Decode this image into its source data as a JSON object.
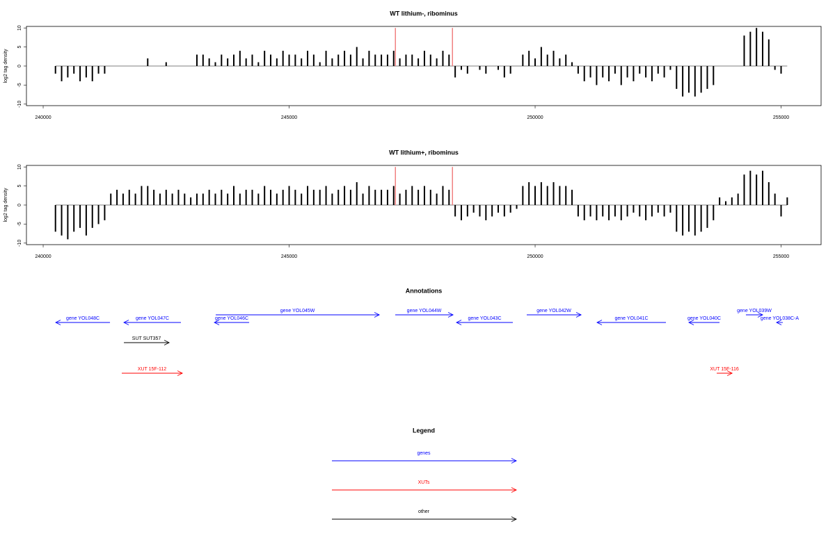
{
  "chart_data": [
    {
      "type": "bar",
      "title": "WT lithium-, ribominus",
      "ylabel": "log2 tag density",
      "color": "#000000",
      "x": [
        240250,
        240375,
        240500,
        240625,
        240750,
        240875,
        241000,
        241125,
        241250,
        241375,
        241500,
        241625,
        241750,
        241875,
        242000,
        242125,
        242250,
        242375,
        242500,
        242625,
        242750,
        242875,
        243000,
        243125,
        243250,
        243375,
        243500,
        243625,
        243750,
        243875,
        244000,
        244125,
        244250,
        244375,
        244500,
        244625,
        244750,
        244875,
        245000,
        245125,
        245250,
        245375,
        245500,
        245625,
        245750,
        245875,
        246000,
        246125,
        246250,
        246375,
        246500,
        246625,
        246750,
        246875,
        247000,
        247125,
        247250,
        247375,
        247500,
        247625,
        247750,
        247875,
        248000,
        248125,
        248250,
        248375,
        248500,
        248625,
        248750,
        248875,
        249000,
        249125,
        249250,
        249375,
        249500,
        249625,
        249750,
        249875,
        250000,
        250125,
        250250,
        250375,
        250500,
        250625,
        250750,
        250875,
        251000,
        251125,
        251250,
        251375,
        251500,
        251625,
        251750,
        251875,
        252000,
        252125,
        252250,
        252375,
        252500,
        252625,
        252750,
        252875,
        253000,
        253125,
        253250,
        253375,
        253500,
        253625,
        253750,
        253875,
        254000,
        254125,
        254250,
        254375,
        254500,
        254625,
        254750,
        254875,
        255000,
        255125
      ],
      "values": [
        -2,
        -4,
        -3,
        -2,
        -4,
        -3,
        -4,
        -2,
        -2,
        0,
        0,
        0,
        0,
        0,
        0,
        2,
        0,
        0,
        1,
        0,
        0,
        0,
        0,
        3,
        3,
        2,
        1,
        3,
        2,
        3,
        4,
        2,
        3,
        1,
        4,
        3,
        2,
        4,
        3,
        3,
        2,
        4,
        3,
        1,
        4,
        2,
        3,
        4,
        3,
        5,
        2,
        4,
        3,
        3,
        3,
        4,
        2,
        3,
        3,
        2,
        4,
        3,
        2,
        4,
        3,
        -3,
        -1,
        -2,
        0,
        -1,
        -2,
        0,
        -1,
        -3,
        -2,
        0,
        3,
        4,
        2,
        5,
        3,
        4,
        2,
        3,
        1,
        -2,
        -4,
        -3,
        -5,
        -3,
        -4,
        -2,
        -5,
        -3,
        -4,
        -2,
        -3,
        -4,
        -2,
        -3,
        -1,
        -6,
        -8,
        -7,
        -8,
        -7,
        -6,
        -5,
        0,
        0,
        0,
        0,
        8,
        9,
        10,
        9,
        7,
        -1,
        -2,
        0
      ],
      "highlights": {
        "color": "#f08080",
        "x": [
          247160,
          248320
        ],
        "values": [
          10,
          10
        ]
      },
      "xlim": [
        239660,
        255813
      ],
      "ylim": [
        -10.4,
        10.4
      ],
      "xticks": [
        240000,
        245000,
        250000,
        255000
      ],
      "yticks": [
        10,
        5,
        0,
        -5,
        -10
      ]
    },
    {
      "type": "bar",
      "title": "WT lithium+, ribominus",
      "ylabel": "log2 tag density",
      "color": "#000000",
      "x": [
        240250,
        240375,
        240500,
        240625,
        240750,
        240875,
        241000,
        241125,
        241250,
        241375,
        241500,
        241625,
        241750,
        241875,
        242000,
        242125,
        242250,
        242375,
        242500,
        242625,
        242750,
        242875,
        243000,
        243125,
        243250,
        243375,
        243500,
        243625,
        243750,
        243875,
        244000,
        244125,
        244250,
        244375,
        244500,
        244625,
        244750,
        244875,
        245000,
        245125,
        245250,
        245375,
        245500,
        245625,
        245750,
        245875,
        246000,
        246125,
        246250,
        246375,
        246500,
        246625,
        246750,
        246875,
        247000,
        247125,
        247250,
        247375,
        247500,
        247625,
        247750,
        247875,
        248000,
        248125,
        248250,
        248375,
        248500,
        248625,
        248750,
        248875,
        249000,
        249125,
        249250,
        249375,
        249500,
        249625,
        249750,
        249875,
        250000,
        250125,
        250250,
        250375,
        250500,
        250625,
        250750,
        250875,
        251000,
        251125,
        251250,
        251375,
        251500,
        251625,
        251750,
        251875,
        252000,
        252125,
        252250,
        252375,
        252500,
        252625,
        252750,
        252875,
        253000,
        253125,
        253250,
        253375,
        253500,
        253625,
        253750,
        253875,
        254000,
        254125,
        254250,
        254375,
        254500,
        254625,
        254750,
        254875,
        255000,
        255125
      ],
      "values": [
        -7,
        -8,
        -9,
        -7,
        -6,
        -8,
        -6,
        -5,
        -4,
        3,
        4,
        3,
        4,
        3,
        5,
        5,
        4,
        3,
        4,
        3,
        4,
        3,
        2,
        3,
        3,
        4,
        3,
        4,
        3,
        5,
        3,
        4,
        4,
        3,
        5,
        4,
        3,
        4,
        5,
        4,
        3,
        5,
        4,
        4,
        5,
        3,
        4,
        5,
        4,
        6,
        3,
        5,
        4,
        4,
        4,
        5,
        3,
        4,
        5,
        4,
        5,
        4,
        3,
        5,
        4,
        -3,
        -4,
        -3,
        -2,
        -3,
        -4,
        -3,
        -2,
        -3,
        -2,
        -1,
        5,
        6,
        5,
        6,
        5,
        6,
        5,
        5,
        4,
        -3,
        -4,
        -3,
        -4,
        -3,
        -4,
        -3,
        -4,
        -3,
        -2,
        -3,
        -4,
        -3,
        -2,
        -3,
        -2,
        -7,
        -8,
        -7,
        -8,
        -7,
        -6,
        -4,
        2,
        1,
        2,
        3,
        8,
        9,
        8,
        9,
        6,
        3,
        -3,
        2
      ],
      "highlights": {
        "color": "#f08080",
        "x": [
          247160,
          248320
        ],
        "values": [
          10,
          10
        ]
      },
      "xlim": [
        239660,
        255813
      ],
      "ylim": [
        -10.4,
        10.4
      ],
      "xticks": [
        240000,
        245000,
        250000,
        255000
      ],
      "yticks": [
        10,
        5,
        0,
        -5,
        -10
      ]
    }
  ],
  "annotations": {
    "title": "Annotations",
    "features": [
      {
        "label": "gene YOL048C",
        "from": 241358,
        "to": 240255,
        "color": "#0000ff"
      },
      {
        "label": "gene YOL047C",
        "from": 242800,
        "to": 241641,
        "color": "#0000ff"
      },
      {
        "label": "gene YOL046C",
        "from": 244187,
        "to": 243480,
        "color": "#0000ff"
      },
      {
        "label": "gene YOL045W",
        "from": 243508,
        "to": 246832,
        "color": "#0000ff"
      },
      {
        "label": "gene YOL044W",
        "from": 247157,
        "to": 248331,
        "color": "#0000ff"
      },
      {
        "label": "gene YOL043C",
        "from": 249547,
        "to": 248402,
        "color": "#0000ff"
      },
      {
        "label": "gene YOL042W",
        "from": 249830,
        "to": 250934,
        "color": "#0000ff"
      },
      {
        "label": "gene YOL041C",
        "from": 252659,
        "to": 251259,
        "color": "#0000ff"
      },
      {
        "label": "gene YOL040C",
        "from": 253748,
        "to": 253126,
        "color": "#0000ff"
      },
      {
        "label": "gene YOL039W",
        "from": 254285,
        "to": 254625,
        "color": "#0000ff"
      },
      {
        "label": "gene YOL038C-A",
        "from": 255035,
        "to": 254908,
        "color": "#0000ff"
      },
      {
        "label": "SUT SUT357",
        "from": 241641,
        "to": 242560,
        "color": "#000000"
      },
      {
        "label": "XUT 15F-112",
        "from": 241598,
        "to": 242829,
        "color": "#ff0000"
      },
      {
        "label": "XUT 15F-116",
        "from": 253692,
        "to": 254004,
        "color": "#ff0000"
      }
    ]
  },
  "legend": {
    "title": "Legend",
    "items": [
      {
        "name": "genes",
        "color": "#0000ff"
      },
      {
        "name": "XUTs",
        "color": "#ff0000"
      },
      {
        "name": "other",
        "color": "#000000"
      }
    ]
  }
}
